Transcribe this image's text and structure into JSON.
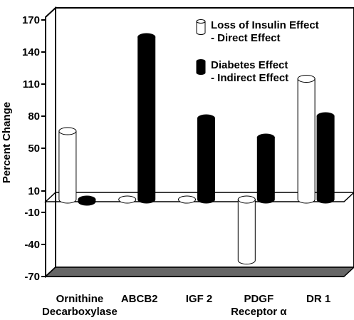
{
  "chart_data": {
    "type": "bar",
    "ylabel": "Percent Change",
    "yticks": [
      170,
      140,
      110,
      80,
      50,
      10,
      -10,
      -40,
      -70
    ],
    "ylim": [
      -70,
      170
    ],
    "categories": [
      [
        "Ornithine",
        "Decarboxylase"
      ],
      [
        "ABCB2"
      ],
      [
        "IGF 2"
      ],
      [
        "PDGF",
        "Receptor α"
      ],
      [
        "DR 1"
      ]
    ],
    "series": [
      {
        "name": [
          "Loss of Insulin Effect",
          "- Direct Effect"
        ],
        "color": "#ffffff",
        "values": [
          64,
          0,
          0,
          -57,
          113
        ]
      },
      {
        "name": [
          "Diabetes Effect",
          "- Indirect Effect"
        ],
        "color": "#000000",
        "values": [
          -2,
          152,
          76,
          58,
          78
        ]
      }
    ],
    "legend_position": "top-right",
    "grid": false,
    "colors": {
      "floor": "#666666",
      "background": "#ffffff",
      "border": "#000000"
    }
  }
}
